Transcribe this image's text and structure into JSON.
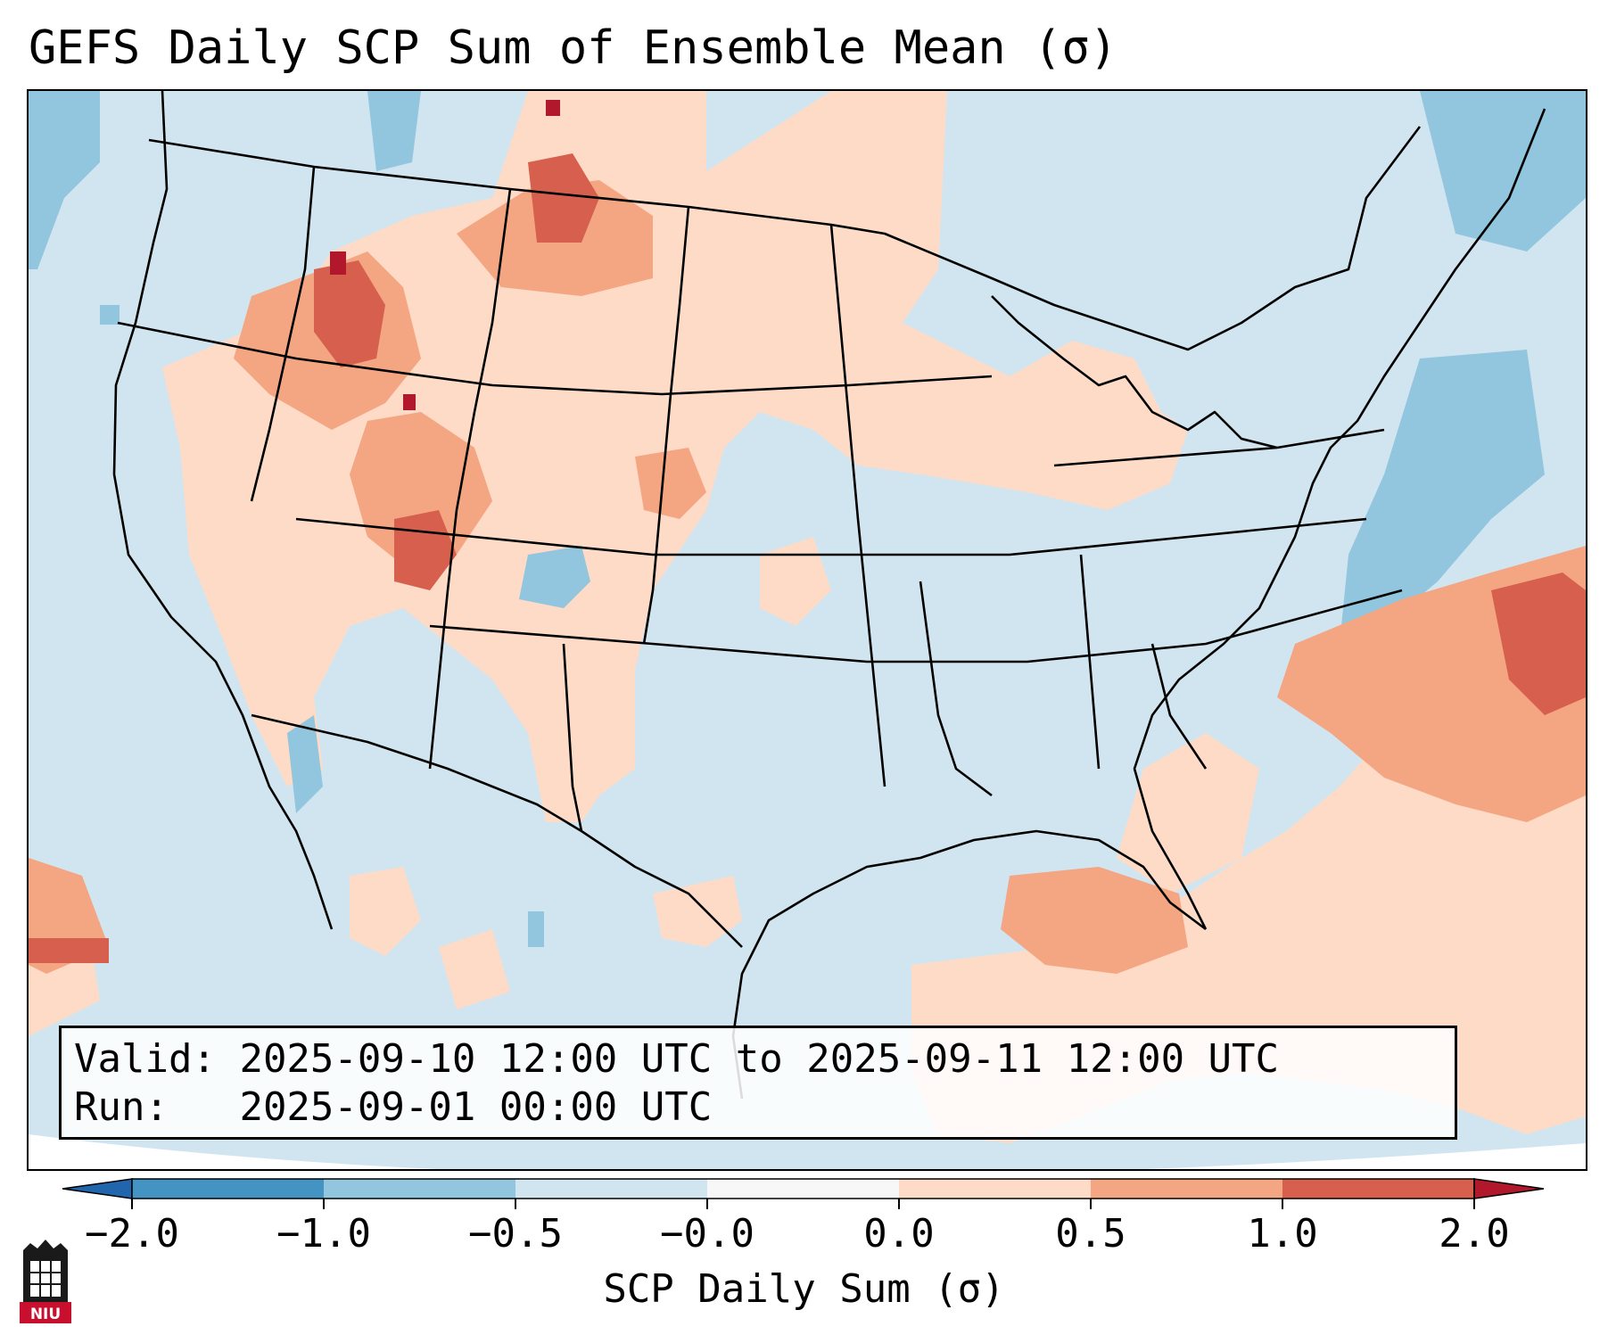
{
  "title": "GEFS Daily SCP Sum of Ensemble Mean (σ)",
  "info": {
    "valid_label": "Valid:",
    "valid_range": "2025-09-10 12:00 UTC to 2025-09-11 12:00 UTC",
    "run_label": "Run:",
    "run_time": "2025-09-01 00:00 UTC"
  },
  "colorbar": {
    "label": "SCP Daily Sum (σ)",
    "ticks": [
      "−2.0",
      "−1.0",
      "−0.5",
      "−0.0",
      "0.0",
      "0.5",
      "1.0",
      "2.0"
    ],
    "bin_colors": [
      "#4393c3",
      "#92c5de",
      "#d1e5f0",
      "#f7f7f7",
      "#fddbc7",
      "#f4a582",
      "#d6604d"
    ],
    "extend_low_color": "#2166ac",
    "extend_high_color": "#b2182b"
  },
  "colors": {
    "background_fill": "#d1e5f0",
    "light_red": "#fddbc7",
    "medium_red": "#f4a582",
    "strong_red": "#d6604d",
    "extreme_red": "#b2182b",
    "medium_blue": "#92c5de"
  },
  "logo": {
    "text": "NIU"
  }
}
